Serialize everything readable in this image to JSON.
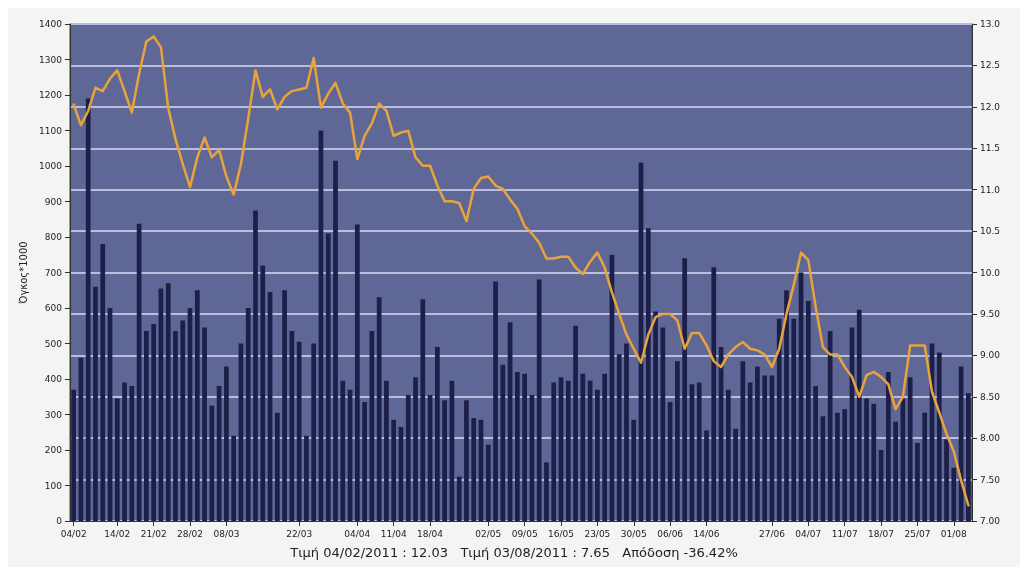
{
  "chart_data": {
    "type": "bar",
    "ylabel": "Όγκος*1000",
    "categories": [
      "04/02",
      null,
      null,
      null,
      null,
      null,
      "14/02",
      null,
      null,
      null,
      null,
      "21/02",
      null,
      null,
      null,
      null,
      "28/02",
      null,
      null,
      null,
      null,
      "08/03",
      null,
      null,
      null,
      null,
      null,
      null,
      null,
      null,
      null,
      "22/03",
      null,
      null,
      null,
      null,
      null,
      null,
      null,
      "04/04",
      null,
      null,
      null,
      null,
      "11/04",
      null,
      null,
      null,
      null,
      "18/04",
      null,
      null,
      null,
      null,
      null,
      null,
      null,
      "02/05",
      null,
      null,
      null,
      null,
      "09/05",
      null,
      null,
      null,
      null,
      "16/05",
      null,
      null,
      null,
      null,
      "23/05",
      null,
      null,
      null,
      null,
      "30/05",
      null,
      null,
      null,
      null,
      "06/06",
      null,
      null,
      null,
      null,
      "14/06",
      null,
      null,
      null,
      null,
      null,
      null,
      null,
      null,
      "27/06",
      null,
      null,
      null,
      null,
      "04/07",
      null,
      null,
      null,
      null,
      "11/07",
      null,
      null,
      null,
      null,
      "18/07",
      null,
      null,
      null,
      null,
      "25/07",
      null,
      null,
      null,
      null,
      "01/08",
      null,
      null
    ],
    "series": [
      {
        "color": "#1c1f48",
        "values": [
          370,
          460,
          1190,
          660,
          780,
          600,
          345,
          390,
          380,
          837,
          535,
          555,
          655,
          670,
          535,
          565,
          600,
          650,
          545,
          325,
          380,
          435,
          240,
          500,
          600,
          875,
          720,
          645,
          305,
          650,
          535,
          505,
          240,
          500,
          1100,
          810,
          1015,
          395,
          370,
          835,
          335,
          535,
          630,
          395,
          285,
          265,
          355,
          405,
          625,
          355,
          490,
          340,
          395,
          125,
          340,
          290,
          285,
          215,
          675,
          440,
          560,
          420,
          415,
          355,
          680,
          165,
          390,
          405,
          395,
          550,
          415,
          395,
          370,
          415,
          750,
          470,
          500,
          285,
          1010,
          825,
          590,
          545,
          335,
          450,
          740,
          385,
          390,
          255,
          715,
          490,
          370,
          260,
          450,
          390,
          435,
          410,
          410,
          570,
          650,
          570,
          700,
          620,
          380,
          295,
          535,
          305,
          315,
          545,
          595,
          345,
          330,
          200,
          420,
          280,
          345,
          405,
          220,
          305,
          500,
          475,
          230,
          150,
          435,
          360
        ]
      },
      {
        "type": "line",
        "axis": "y2",
        "color": "#e8a43a",
        "values": [
          12.03,
          11.78,
          11.95,
          12.23,
          12.19,
          12.34,
          12.44,
          12.19,
          11.93,
          12.4,
          12.79,
          12.85,
          12.72,
          11.99,
          11.61,
          11.31,
          11.03,
          11.39,
          11.63,
          11.39,
          11.48,
          11.16,
          10.94,
          11.31,
          11.86,
          12.44,
          12.12,
          12.21,
          11.97,
          12.12,
          12.19,
          12.21,
          12.23,
          12.59,
          11.99,
          12.16,
          12.29,
          12.04,
          11.93,
          11.37,
          11.65,
          11.8,
          12.04,
          11.95,
          11.65,
          11.69,
          11.71,
          11.39,
          11.29,
          11.29,
          11.05,
          10.86,
          10.86,
          10.84,
          10.62,
          11.01,
          11.14,
          11.16,
          11.05,
          11.01,
          10.88,
          10.77,
          10.56,
          10.47,
          10.36,
          10.17,
          10.17,
          10.19,
          10.19,
          10.06,
          9.98,
          10.13,
          10.24,
          10.06,
          9.76,
          9.5,
          9.25,
          9.08,
          8.91,
          9.25,
          9.46,
          9.5,
          9.5,
          9.42,
          9.08,
          9.27,
          9.27,
          9.12,
          8.93,
          8.86,
          9.01,
          9.1,
          9.16,
          9.08,
          9.06,
          9.01,
          8.86,
          9.08,
          9.5,
          9.85,
          10.24,
          10.15,
          9.59,
          9.1,
          9.01,
          9.01,
          8.86,
          8.74,
          8.5,
          8.76,
          8.8,
          8.74,
          8.65,
          8.35,
          8.5,
          9.12,
          9.12,
          9.12,
          8.56,
          8.31,
          8.05,
          7.84,
          7.49,
          7.19
        ]
      }
    ],
    "ylim": [
      0,
      1400
    ],
    "yticks": [
      0,
      100,
      200,
      300,
      400,
      500,
      600,
      700,
      800,
      900,
      1000,
      1100,
      1200,
      1300,
      1400
    ],
    "y2lim": [
      7,
      13
    ],
    "y2ticks": [
      {
        "value": 7,
        "label": "7.00"
      },
      {
        "value": 7.5,
        "label": "7.50"
      },
      {
        "value": 8,
        "label": "8.00"
      },
      {
        "value": 8.5,
        "label": "8.50"
      },
      {
        "value": 9,
        "label": "9.00"
      },
      {
        "value": 9.5,
        "label": "9.50"
      },
      {
        "value": 10,
        "label": "10.0"
      },
      {
        "value": 10.5,
        "label": "10.5"
      },
      {
        "value": 11,
        "label": "11.0"
      },
      {
        "value": 11.5,
        "label": "11.5"
      },
      {
        "value": 12,
        "label": "12.0"
      },
      {
        "value": 12.5,
        "label": "12.5"
      },
      {
        "value": 13,
        "label": "13.0"
      }
    ],
    "grid": "y2",
    "marker": "none",
    "annotations": [
      "Τιμή 04/02/2011 : 12.03   Τιμή 03/08/2011 : 7.65   Απόδοση -36.42%"
    ]
  }
}
